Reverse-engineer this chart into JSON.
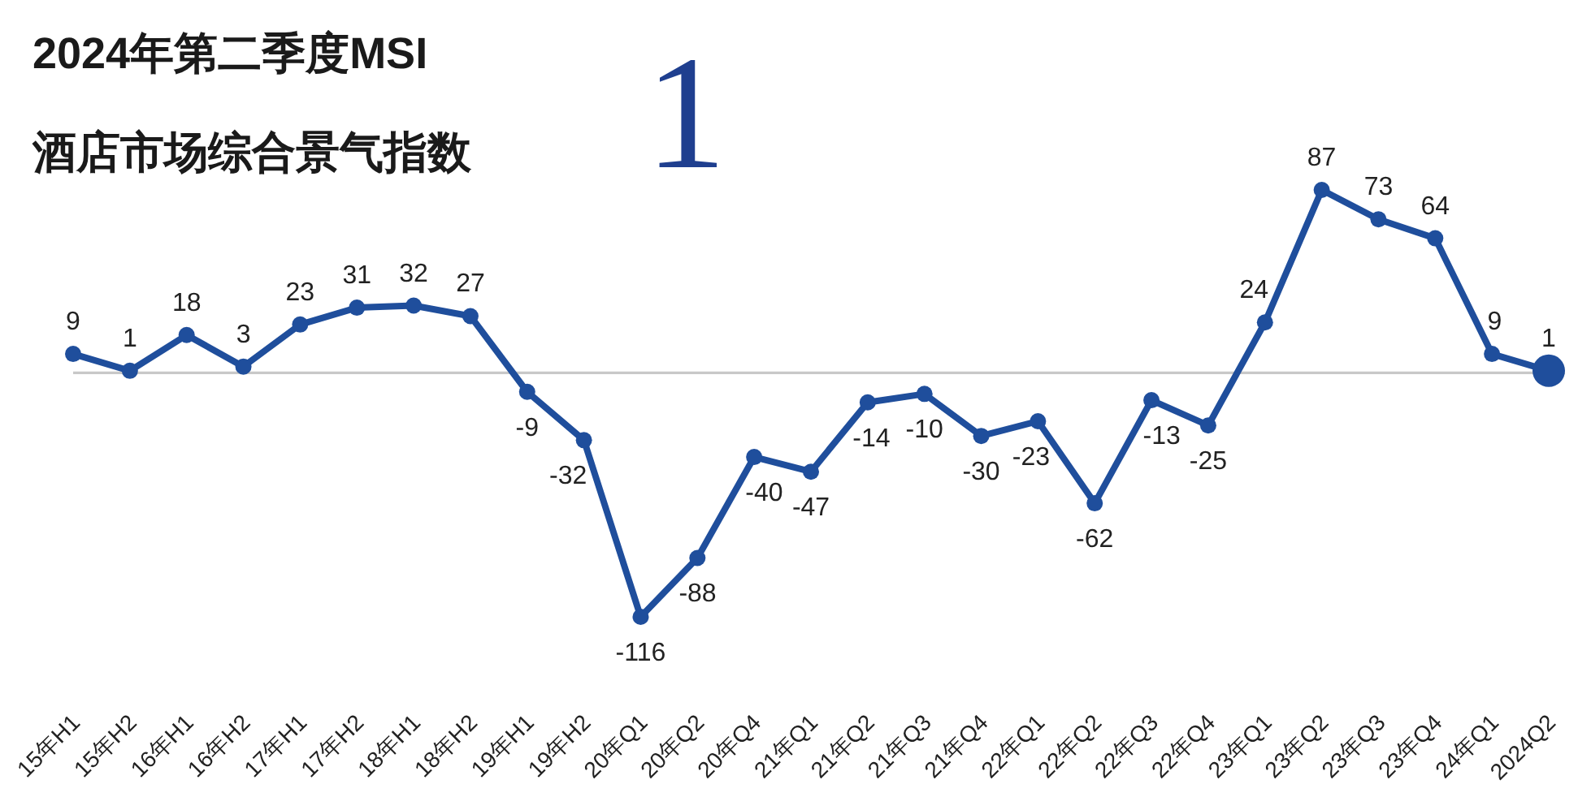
{
  "chart_data": {
    "type": "line",
    "title": "2024年第二季度MSI",
    "subtitle": "酒店市场综合景气指数",
    "annotations": [
      "1"
    ],
    "categories": [
      "15年H1",
      "15年H2",
      "16年H1",
      "16年H2",
      "17年H1",
      "17年H2",
      "18年H1",
      "18年H2",
      "19年H1",
      "19年H2",
      "20年Q1",
      "20年Q2",
      "20年Q4",
      "21年Q1",
      "21年Q2",
      "21年Q3",
      "21年Q4",
      "22年Q1",
      "22年Q2",
      "22年Q3",
      "22年Q4",
      "23年Q1",
      "23年Q2",
      "23年Q3",
      "23年Q4",
      "24年Q1",
      "2024Q2"
    ],
    "series": [
      {
        "color": "#1f4e9c",
        "values": [
          9,
          1,
          18,
          3,
          23,
          31,
          32,
          27,
          -9,
          -32,
          -116,
          -88,
          -40,
          -47,
          -14,
          -10,
          -30,
          -23,
          -62,
          -13,
          -25,
          24,
          87,
          73,
          64,
          9,
          1
        ],
        "value_labels": [
          "9",
          "1",
          "18",
          "3",
          "23",
          "31",
          "32",
          "27",
          "-9",
          "-32",
          "-116",
          "-88",
          "-40",
          "-47",
          "-14",
          "-10",
          "-30",
          "-23",
          "-62",
          "-13",
          "-25",
          "24",
          "87",
          "73",
          "64",
          "9",
          "1"
        ]
      },
      {
        "type": "scatter",
        "color": "#1f4e9c",
        "values": [
          null,
          null,
          null,
          null,
          null,
          null,
          null,
          null,
          null,
          null,
          null,
          null,
          null,
          null,
          null,
          null,
          null,
          null,
          null,
          null,
          null,
          null,
          null,
          null,
          null,
          null,
          1
        ]
      }
    ],
    "ref_lines": [
      {
        "axis": "y",
        "value": 0,
        "color": "#c8c8c8"
      }
    ],
    "marker": "circle",
    "line_style": "solid"
  }
}
